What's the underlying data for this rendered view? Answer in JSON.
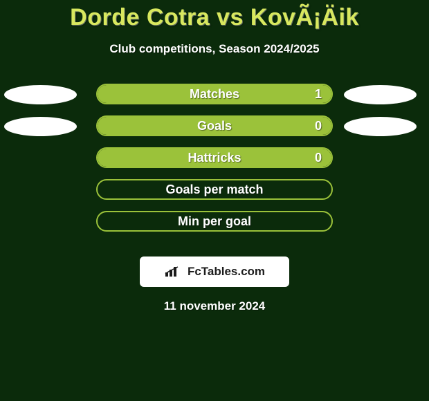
{
  "background_color": "#0b2b0b",
  "title": {
    "text": "Dorde Cotra vs KovÃ¡Äik",
    "color": "#d8e85e",
    "fontsize": 34
  },
  "subtitle": {
    "text": "Club competitions, Season 2024/2025",
    "color": "#ffffff",
    "fontsize": 17
  },
  "ellipse_color": "#ffffff",
  "bar_border_color": "#9bc23a",
  "bar_fill_color": "#9bc23a",
  "bar_empty_color": "rgba(0,0,0,0.0)",
  "stats": [
    {
      "label": "Matches",
      "value": "1",
      "fill_pct": 100,
      "left_ellipse": true,
      "right_ellipse": true
    },
    {
      "label": "Goals",
      "value": "0",
      "fill_pct": 100,
      "left_ellipse": true,
      "right_ellipse": true
    },
    {
      "label": "Hattricks",
      "value": "0",
      "fill_pct": 100,
      "left_ellipse": false,
      "right_ellipse": false
    },
    {
      "label": "Goals per match",
      "value": "",
      "fill_pct": 0,
      "left_ellipse": false,
      "right_ellipse": false
    },
    {
      "label": "Min per goal",
      "value": "",
      "fill_pct": 0,
      "left_ellipse": false,
      "right_ellipse": false
    }
  ],
  "footer": {
    "badge_bg": "#ffffff",
    "badge_text": "FcTables.com",
    "badge_icon_color": "#1b1b1b"
  },
  "date": {
    "text": "11 november 2024",
    "color": "#ffffff"
  }
}
